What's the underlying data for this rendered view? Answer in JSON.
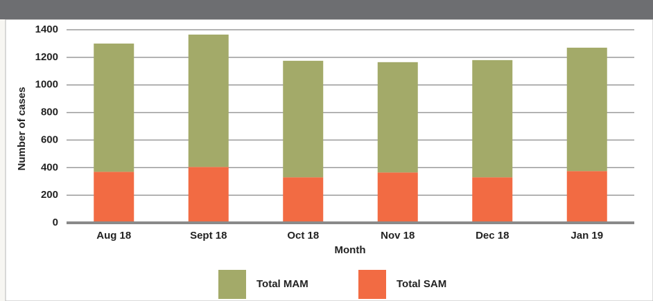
{
  "chart_data": {
    "type": "stacked_bar",
    "y_label": "Number of cases",
    "x_label": "Month",
    "categories": [
      "Aug 18",
      "Sept 18",
      "Oct 18",
      "Nov 18",
      "Dec 18",
      "Jan 19"
    ],
    "series": [
      {
        "name": "Total MAM",
        "color": "#a3aa69",
        "values": [
          930,
          960,
          845,
          800,
          850,
          895
        ]
      },
      {
        "name": "Total SAM",
        "color": "#f26b43",
        "values": [
          370,
          405,
          330,
          365,
          330,
          375
        ]
      }
    ],
    "ylim": [
      0,
      1400
    ],
    "yticks": [
      0,
      200,
      400,
      600,
      800,
      1000,
      1200,
      1400
    ],
    "grid": true
  }
}
